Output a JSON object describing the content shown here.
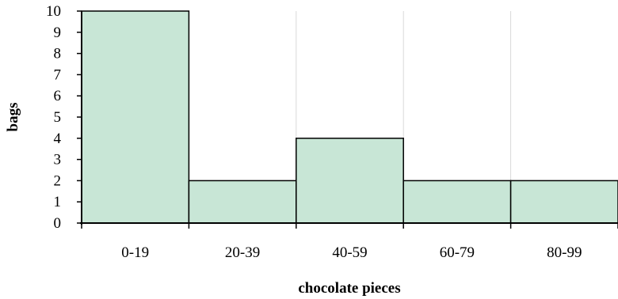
{
  "chart_data": {
    "type": "bar",
    "categories": [
      "0-19",
      "20-39",
      "40-59",
      "60-79",
      "80-99"
    ],
    "values": [
      10,
      2,
      4,
      2,
      2
    ],
    "xlabel": "chocolate pieces",
    "ylabel": "bags",
    "ylim": [
      0,
      10
    ],
    "yticks": [
      0,
      1,
      2,
      3,
      4,
      5,
      6,
      7,
      8,
      9,
      10
    ],
    "grid": "vertical",
    "bar_color": "#c8e6d6",
    "bar_edge_color": "#000000",
    "grid_color": "#d9d9d9"
  }
}
